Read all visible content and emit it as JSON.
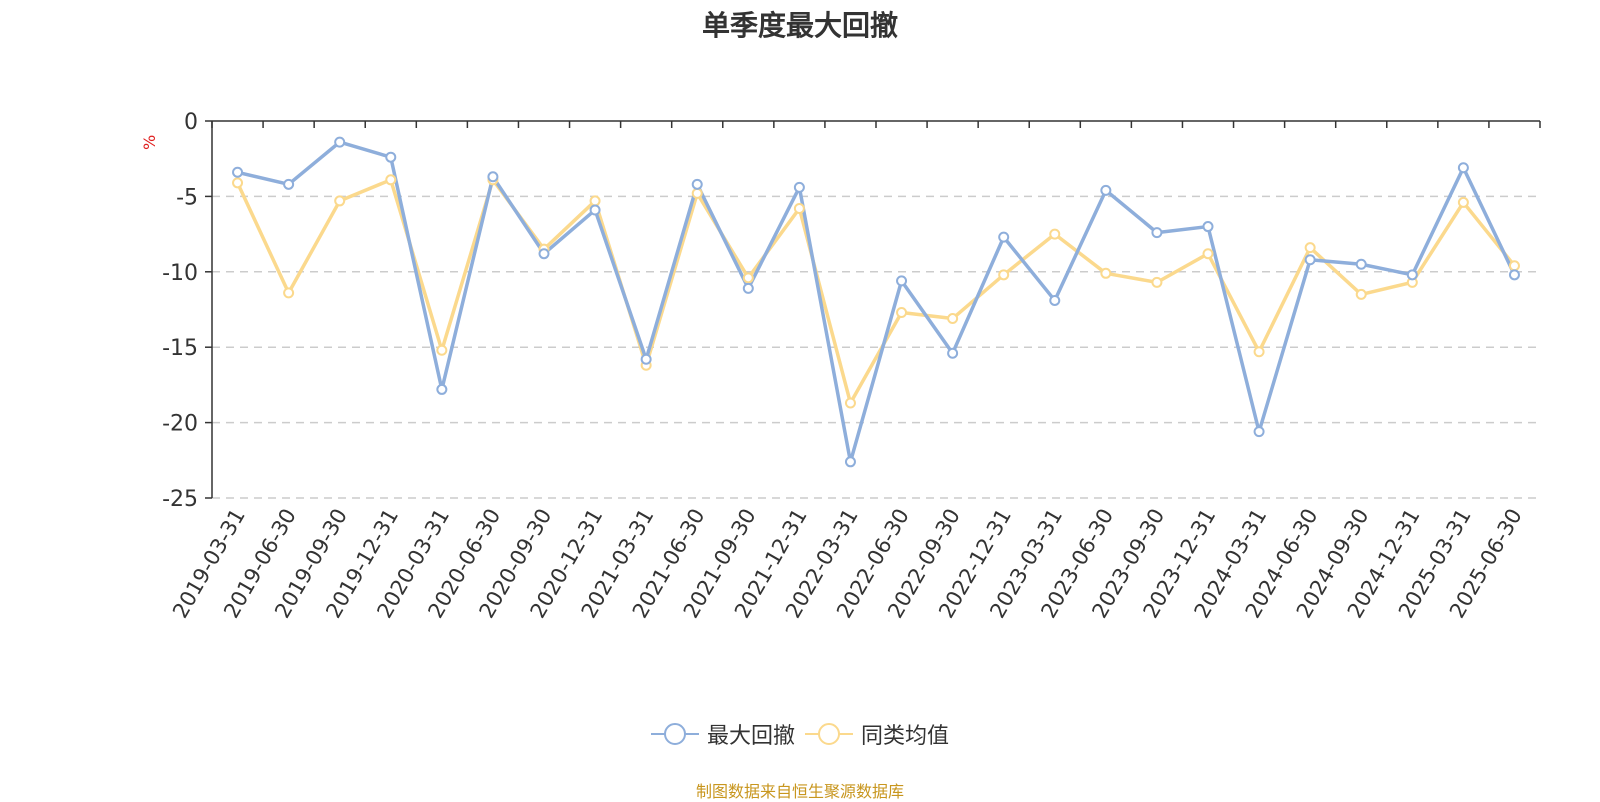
{
  "chart_data": {
    "type": "line",
    "title": "单季度最大回撤",
    "unit_label": "%",
    "ylim": [
      -25,
      0
    ],
    "yticks": [
      0,
      -5,
      -10,
      -15,
      -20,
      -25
    ],
    "grid": "dashed horizontal",
    "legend_position": "bottom-center",
    "categories": [
      "2019-03-31",
      "2019-06-30",
      "2019-09-30",
      "2019-12-31",
      "2020-03-31",
      "2020-06-30",
      "2020-09-30",
      "2020-12-31",
      "2021-03-31",
      "2021-06-30",
      "2021-09-30",
      "2021-12-31",
      "2022-03-31",
      "2022-06-30",
      "2022-09-30",
      "2022-12-31",
      "2023-03-31",
      "2023-06-30",
      "2023-09-30",
      "2023-12-31",
      "2024-03-31",
      "2024-06-30",
      "2024-09-30",
      "2024-12-31",
      "2025-03-31",
      "2025-06-30"
    ],
    "series": [
      {
        "name": "最大回撤",
        "color": "#8eaedb",
        "values": [
          -3.4,
          -4.2,
          -1.4,
          -2.4,
          -17.8,
          -3.7,
          -8.8,
          -5.9,
          -15.8,
          -4.2,
          -11.1,
          -4.4,
          -22.6,
          -10.6,
          -15.4,
          -7.7,
          -11.9,
          -4.6,
          -7.4,
          -7.0,
          -20.6,
          -9.2,
          -9.5,
          -10.2,
          -3.1,
          -10.2
        ]
      },
      {
        "name": "同类均值",
        "color": "#fbd98d",
        "values": [
          -4.1,
          -11.4,
          -5.3,
          -3.9,
          -15.2,
          -3.9,
          -8.5,
          -5.3,
          -16.2,
          -4.8,
          -10.4,
          -5.8,
          -18.7,
          -12.7,
          -13.1,
          -10.2,
          -7.5,
          -10.1,
          -10.7,
          -8.8,
          -15.3,
          -8.4,
          -11.5,
          -10.7,
          -5.4,
          -9.6
        ]
      }
    ]
  },
  "source_text": "制图数据来自恒生聚源数据库"
}
